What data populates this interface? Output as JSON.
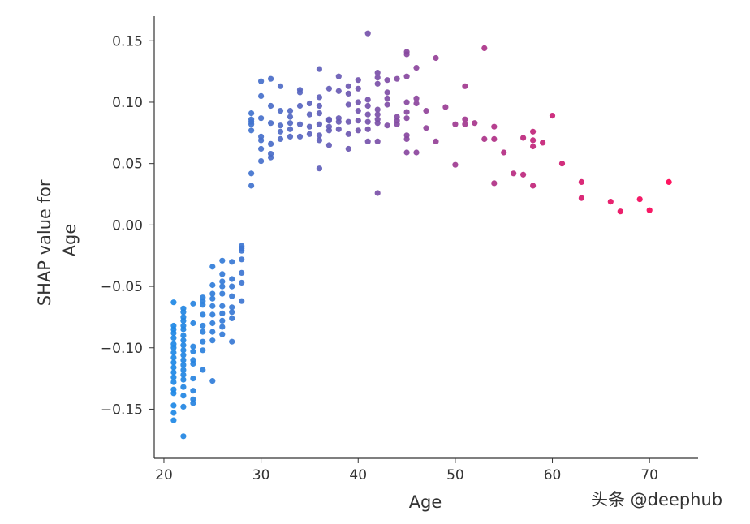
{
  "chart_data": {
    "type": "scatter",
    "title": "",
    "xlabel": "Age",
    "ylabel_lines": [
      "SHAP value for",
      "Age"
    ],
    "xlim": [
      19,
      75
    ],
    "ylim": [
      -0.19,
      0.17
    ],
    "xticks": [
      20,
      30,
      40,
      50,
      60,
      70
    ],
    "yticks": [
      -0.15,
      -0.1,
      -0.05,
      0.0,
      0.05,
      0.1,
      0.15
    ],
    "ytick_labels": [
      "−0.15",
      "−0.10",
      "−0.05",
      "0.00",
      "0.05",
      "0.10",
      "0.15"
    ],
    "grid": false,
    "color_low": "#1e88e5",
    "color_high": "#ff0052",
    "points": [
      [
        21,
        -0.063
      ],
      [
        21,
        -0.082
      ],
      [
        21,
        -0.085
      ],
      [
        21,
        -0.088
      ],
      [
        21,
        -0.092
      ],
      [
        21,
        -0.097
      ],
      [
        21,
        -0.1
      ],
      [
        21,
        -0.104
      ],
      [
        21,
        -0.108
      ],
      [
        21,
        -0.112
      ],
      [
        21,
        -0.116
      ],
      [
        21,
        -0.12
      ],
      [
        21,
        -0.124
      ],
      [
        21,
        -0.128
      ],
      [
        21,
        -0.134
      ],
      [
        21,
        -0.137
      ],
      [
        21,
        -0.147
      ],
      [
        21,
        -0.153
      ],
      [
        21,
        -0.159
      ],
      [
        22,
        -0.068
      ],
      [
        22,
        -0.071
      ],
      [
        22,
        -0.075
      ],
      [
        22,
        -0.078
      ],
      [
        22,
        -0.082
      ],
      [
        22,
        -0.085
      ],
      [
        22,
        -0.09
      ],
      [
        22,
        -0.094
      ],
      [
        22,
        -0.098
      ],
      [
        22,
        -0.102
      ],
      [
        22,
        -0.106
      ],
      [
        22,
        -0.11
      ],
      [
        22,
        -0.114
      ],
      [
        22,
        -0.118
      ],
      [
        22,
        -0.122
      ],
      [
        22,
        -0.126
      ],
      [
        22,
        -0.132
      ],
      [
        22,
        -0.139
      ],
      [
        22,
        -0.148
      ],
      [
        22,
        -0.172
      ],
      [
        23,
        -0.064
      ],
      [
        23,
        -0.08
      ],
      [
        23,
        -0.099
      ],
      [
        23,
        -0.103
      ],
      [
        23,
        -0.11
      ],
      [
        23,
        -0.113
      ],
      [
        23,
        -0.125
      ],
      [
        23,
        -0.135
      ],
      [
        23,
        -0.142
      ],
      [
        23,
        -0.145
      ],
      [
        24,
        -0.059
      ],
      [
        24,
        -0.062
      ],
      [
        24,
        -0.065
      ],
      [
        24,
        -0.073
      ],
      [
        24,
        -0.082
      ],
      [
        24,
        -0.087
      ],
      [
        24,
        -0.095
      ],
      [
        24,
        -0.102
      ],
      [
        24,
        -0.118
      ],
      [
        25,
        -0.034
      ],
      [
        25,
        -0.049
      ],
      [
        25,
        -0.056
      ],
      [
        25,
        -0.06
      ],
      [
        25,
        -0.066
      ],
      [
        25,
        -0.073
      ],
      [
        25,
        -0.08
      ],
      [
        25,
        -0.087
      ],
      [
        25,
        -0.094
      ],
      [
        25,
        -0.127
      ],
      [
        26,
        -0.029
      ],
      [
        26,
        -0.04
      ],
      [
        26,
        -0.046
      ],
      [
        26,
        -0.05
      ],
      [
        26,
        -0.056
      ],
      [
        26,
        -0.066
      ],
      [
        26,
        -0.072
      ],
      [
        26,
        -0.078
      ],
      [
        26,
        -0.083
      ],
      [
        26,
        -0.089
      ],
      [
        27,
        -0.03
      ],
      [
        27,
        -0.044
      ],
      [
        27,
        -0.05
      ],
      [
        27,
        -0.058
      ],
      [
        27,
        -0.067
      ],
      [
        27,
        -0.071
      ],
      [
        27,
        -0.076
      ],
      [
        27,
        -0.095
      ],
      [
        28,
        -0.017
      ],
      [
        28,
        -0.019
      ],
      [
        28,
        -0.021
      ],
      [
        28,
        -0.028
      ],
      [
        28,
        -0.039
      ],
      [
        28,
        -0.047
      ],
      [
        28,
        -0.062
      ],
      [
        29,
        0.032
      ],
      [
        29,
        0.042
      ],
      [
        29,
        0.077
      ],
      [
        29,
        0.082
      ],
      [
        29,
        0.084
      ],
      [
        29,
        0.086
      ],
      [
        29,
        0.091
      ],
      [
        30,
        0.052
      ],
      [
        30,
        0.062
      ],
      [
        30,
        0.069
      ],
      [
        30,
        0.072
      ],
      [
        30,
        0.087
      ],
      [
        30,
        0.105
      ],
      [
        30,
        0.117
      ],
      [
        31,
        0.055
      ],
      [
        31,
        0.058
      ],
      [
        31,
        0.066
      ],
      [
        31,
        0.083
      ],
      [
        31,
        0.097
      ],
      [
        31,
        0.119
      ],
      [
        32,
        0.07
      ],
      [
        32,
        0.076
      ],
      [
        32,
        0.081
      ],
      [
        32,
        0.093
      ],
      [
        32,
        0.113
      ],
      [
        33,
        0.072
      ],
      [
        33,
        0.078
      ],
      [
        33,
        0.083
      ],
      [
        33,
        0.088
      ],
      [
        33,
        0.093
      ],
      [
        34,
        0.072
      ],
      [
        34,
        0.082
      ],
      [
        34,
        0.097
      ],
      [
        34,
        0.108
      ],
      [
        34,
        0.11
      ],
      [
        35,
        0.074
      ],
      [
        35,
        0.08
      ],
      [
        35,
        0.09
      ],
      [
        35,
        0.099
      ],
      [
        36,
        0.046
      ],
      [
        36,
        0.069
      ],
      [
        36,
        0.073
      ],
      [
        36,
        0.082
      ],
      [
        36,
        0.091
      ],
      [
        36,
        0.097
      ],
      [
        36,
        0.104
      ],
      [
        36,
        0.127
      ],
      [
        37,
        0.065
      ],
      [
        37,
        0.077
      ],
      [
        37,
        0.08
      ],
      [
        37,
        0.085
      ],
      [
        37,
        0.086
      ],
      [
        37,
        0.111
      ],
      [
        38,
        0.078
      ],
      [
        38,
        0.084
      ],
      [
        38,
        0.087
      ],
      [
        38,
        0.109
      ],
      [
        38,
        0.121
      ],
      [
        39,
        0.062
      ],
      [
        39,
        0.074
      ],
      [
        39,
        0.084
      ],
      [
        39,
        0.098
      ],
      [
        39,
        0.107
      ],
      [
        39,
        0.113
      ],
      [
        40,
        0.077
      ],
      [
        40,
        0.085
      ],
      [
        40,
        0.093
      ],
      [
        40,
        0.1
      ],
      [
        40,
        0.111
      ],
      [
        40,
        0.118
      ],
      [
        41,
        0.068
      ],
      [
        41,
        0.078
      ],
      [
        41,
        0.084
      ],
      [
        41,
        0.09
      ],
      [
        41,
        0.097
      ],
      [
        41,
        0.102
      ],
      [
        41,
        0.156
      ],
      [
        42,
        0.026
      ],
      [
        42,
        0.068
      ],
      [
        42,
        0.083
      ],
      [
        42,
        0.086
      ],
      [
        42,
        0.09
      ],
      [
        42,
        0.094
      ],
      [
        42,
        0.115
      ],
      [
        42,
        0.12
      ],
      [
        42,
        0.124
      ],
      [
        43,
        0.081
      ],
      [
        43,
        0.098
      ],
      [
        43,
        0.103
      ],
      [
        43,
        0.108
      ],
      [
        43,
        0.118
      ],
      [
        44,
        0.082
      ],
      [
        44,
        0.085
      ],
      [
        44,
        0.088
      ],
      [
        44,
        0.119
      ],
      [
        45,
        0.059
      ],
      [
        45,
        0.07
      ],
      [
        45,
        0.073
      ],
      [
        45,
        0.087
      ],
      [
        45,
        0.092
      ],
      [
        45,
        0.1
      ],
      [
        45,
        0.121
      ],
      [
        45,
        0.139
      ],
      [
        45,
        0.141
      ],
      [
        46,
        0.059
      ],
      [
        46,
        0.099
      ],
      [
        46,
        0.103
      ],
      [
        46,
        0.128
      ],
      [
        47,
        0.079
      ],
      [
        47,
        0.093
      ],
      [
        48,
        0.068
      ],
      [
        48,
        0.136
      ],
      [
        49,
        0.096
      ],
      [
        50,
        0.049
      ],
      [
        50,
        0.082
      ],
      [
        51,
        0.082
      ],
      [
        51,
        0.086
      ],
      [
        51,
        0.113
      ],
      [
        52,
        0.083
      ],
      [
        53,
        0.07
      ],
      [
        53,
        0.144
      ],
      [
        54,
        0.034
      ],
      [
        54,
        0.07
      ],
      [
        54,
        0.08
      ],
      [
        55,
        0.059
      ],
      [
        56,
        0.042
      ],
      [
        57,
        0.041
      ],
      [
        57,
        0.071
      ],
      [
        58,
        0.032
      ],
      [
        58,
        0.064
      ],
      [
        58,
        0.069
      ],
      [
        58,
        0.076
      ],
      [
        59,
        0.067
      ],
      [
        60,
        0.089
      ],
      [
        61,
        0.05
      ],
      [
        63,
        0.022
      ],
      [
        63,
        0.035
      ],
      [
        66,
        0.019
      ],
      [
        67,
        0.011
      ],
      [
        69,
        0.021
      ],
      [
        70,
        0.012
      ],
      [
        72,
        0.035
      ]
    ]
  },
  "watermark": {
    "text": "头条 @deephub"
  }
}
